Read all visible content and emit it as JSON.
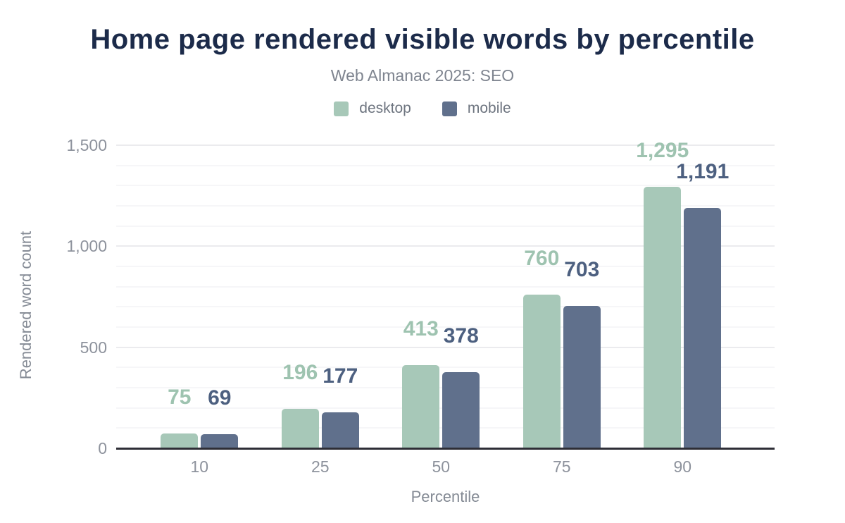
{
  "header": {
    "title": "Home page rendered visible words by percentile",
    "subtitle": "Web Almanac 2025: SEO"
  },
  "legend": [
    {
      "label": "desktop",
      "color": "#a7c8b8"
    },
    {
      "label": "mobile",
      "color": "#60708c"
    }
  ],
  "colors": {
    "title_text": "#1c2b4a",
    "subtitle_text": "#7e848f",
    "tick_text": "#8d929c",
    "axis_title_text": "#858b95",
    "axis_line": "#2e2e36",
    "desktop_bar": "#a7c8b8",
    "desktop_value_label": "#9ec3b0",
    "mobile_bar": "#60708c",
    "mobile_value_label": "#4d6080"
  },
  "chart_data": {
    "type": "bar",
    "title": "Home page rendered visible words by percentile",
    "subtitle": "Web Almanac 2025: SEO",
    "categories": [
      "10",
      "25",
      "50",
      "75",
      "90"
    ],
    "series": [
      {
        "name": "desktop",
        "color": "#a7c8b8",
        "label_color": "#9ec3b0",
        "values": [
          75,
          196,
          413,
          760,
          1295
        ],
        "labels": [
          "75",
          "196",
          "413",
          "760",
          "1,295"
        ]
      },
      {
        "name": "mobile",
        "color": "#60708c",
        "label_color": "#4d6080",
        "values": [
          69,
          177,
          378,
          703,
          1191
        ],
        "labels": [
          "69",
          "177",
          "378",
          "703",
          "1,191"
        ]
      }
    ],
    "xlabel": "Percentile",
    "ylabel": "Rendered word count",
    "ylim": [
      0,
      1500
    ],
    "yticks": [
      {
        "value": 0,
        "label": "0"
      },
      {
        "value": 500,
        "label": "500"
      },
      {
        "value": 1000,
        "label": "1,000"
      },
      {
        "value": 1500,
        "label": "1,500"
      }
    ],
    "grid": {
      "minor_step": 100,
      "major_step": 500
    },
    "legend_position": "top",
    "value_labels": "above-bars"
  }
}
